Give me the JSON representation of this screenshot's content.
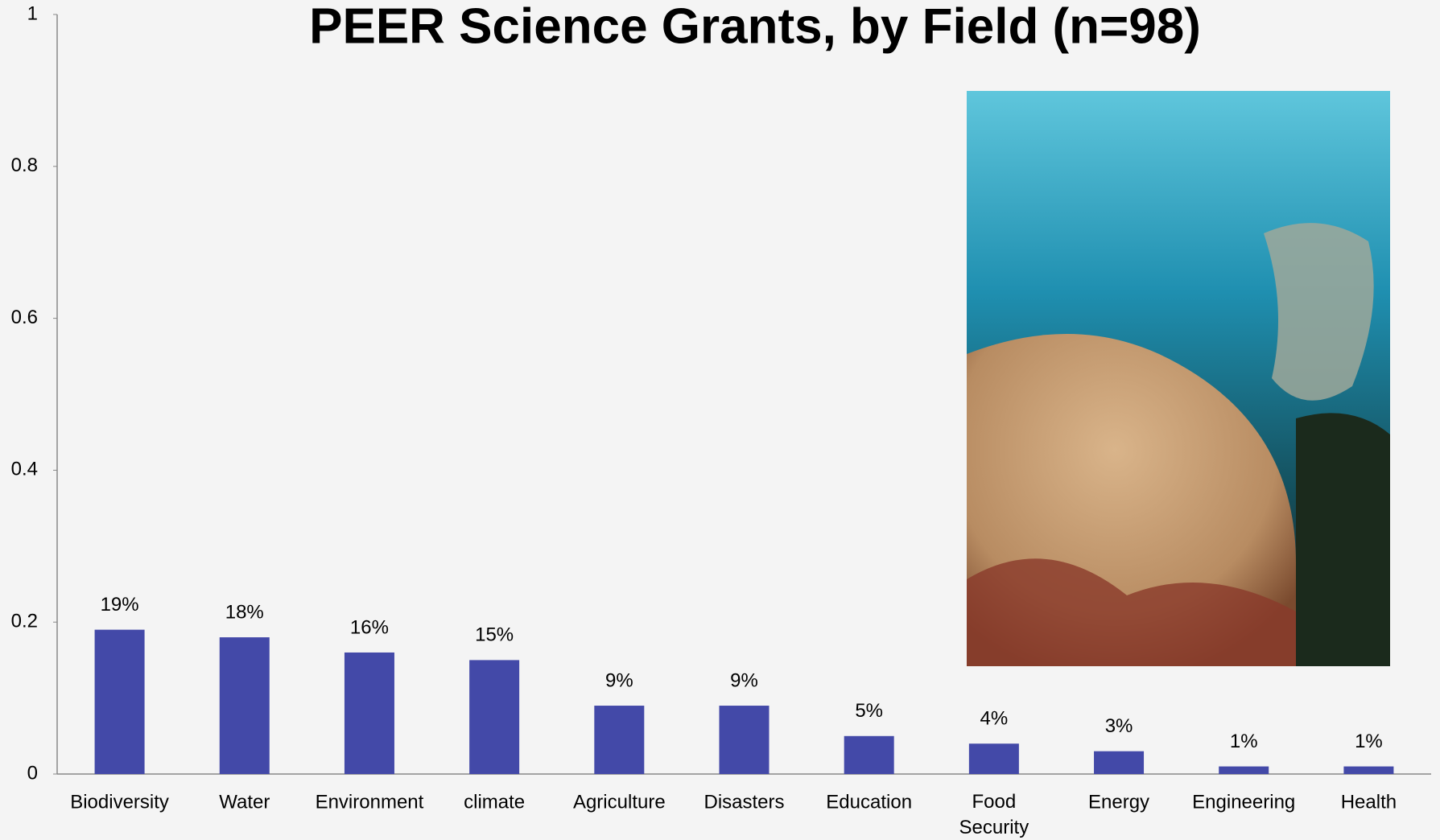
{
  "chart_data": {
    "type": "bar",
    "title": "PEER Science Grants, by Field (n=98)",
    "categories": [
      "Biodiversity",
      "Water",
      "Environment",
      "climate",
      "Agriculture",
      "Disasters",
      "Education",
      "Food Security",
      "Energy",
      "Engineering",
      "Health"
    ],
    "values": [
      0.19,
      0.18,
      0.16,
      0.15,
      0.09,
      0.09,
      0.05,
      0.04,
      0.03,
      0.01,
      0.01
    ],
    "value_labels": [
      "19%",
      "18%",
      "16%",
      "15%",
      "9%",
      "9%",
      "5%",
      "4%",
      "3%",
      "1%",
      "1%"
    ],
    "color": "#4349a8",
    "ylim": [
      0,
      1
    ],
    "yticks": [
      0,
      0.2,
      0.4,
      0.6,
      0.8,
      1
    ],
    "grid": false
  }
}
